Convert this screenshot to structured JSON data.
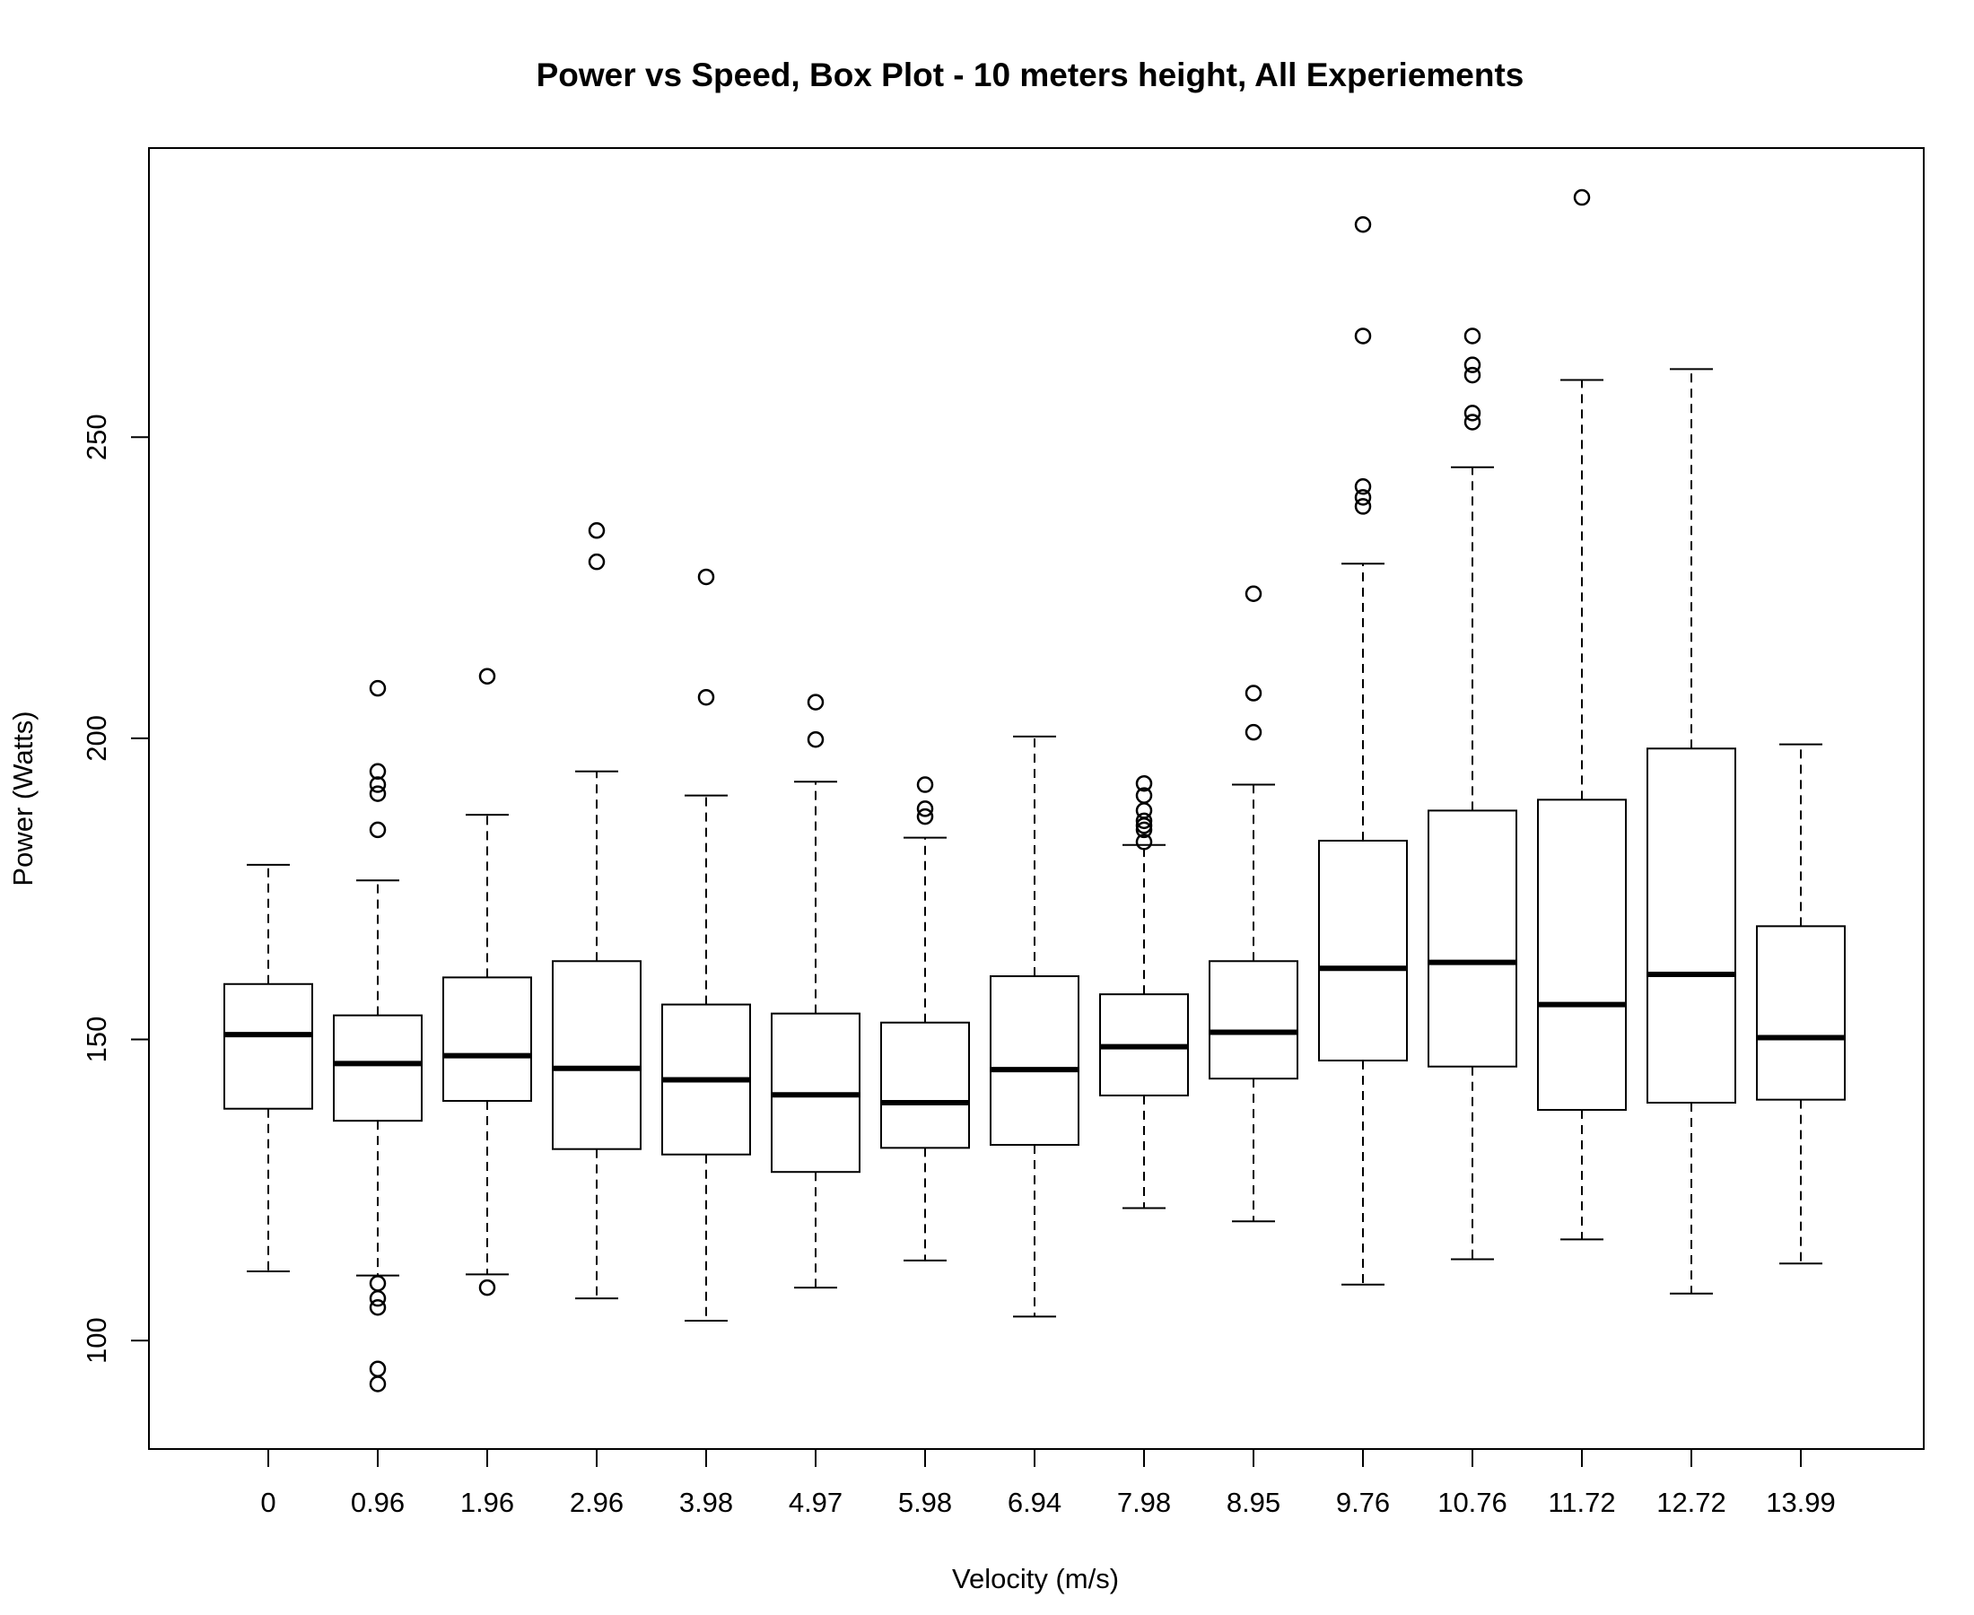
{
  "chart_data": {
    "type": "box",
    "title": "Power vs Speed, Box Plot - 10 meters height, All Experiements",
    "xlabel": "Velocity (m/s)",
    "ylabel": "Power (Watts)",
    "categories": [
      "0",
      "0.96",
      "1.96",
      "2.96",
      "3.98",
      "4.97",
      "5.98",
      "6.94",
      "7.98",
      "8.95",
      "9.76",
      "10.76",
      "11.72",
      "12.72",
      "13.99"
    ],
    "yticks": [
      100,
      150,
      200,
      250
    ],
    "ylim": [
      82,
      298
    ],
    "grid": false,
    "legend": "none",
    "boxes": [
      {
        "category": "0",
        "whisker_low": 111.5,
        "q1": 138.5,
        "median": 150.8,
        "q3": 159.2,
        "whisker_high": 179.0,
        "outliers": []
      },
      {
        "category": "0.96",
        "whisker_low": 110.8,
        "q1": 136.5,
        "median": 146.0,
        "q3": 154.0,
        "whisker_high": 176.4,
        "outliers": [
          109.5,
          107.0,
          105.5,
          95.3,
          92.8,
          184.8,
          190.8,
          192.3,
          194.5,
          208.3
        ]
      },
      {
        "category": "1.96",
        "whisker_low": 111.0,
        "q1": 139.8,
        "median": 147.3,
        "q3": 160.3,
        "whisker_high": 187.3,
        "outliers": [
          108.8,
          210.3
        ]
      },
      {
        "category": "2.96",
        "whisker_low": 107.0,
        "q1": 131.8,
        "median": 145.2,
        "q3": 163.0,
        "whisker_high": 194.5,
        "outliers": [
          229.3,
          234.5
        ]
      },
      {
        "category": "3.98",
        "whisker_low": 103.3,
        "q1": 130.9,
        "median": 143.3,
        "q3": 155.8,
        "whisker_high": 190.5,
        "outliers": [
          206.8,
          226.8
        ]
      },
      {
        "category": "4.97",
        "whisker_low": 108.8,
        "q1": 128.0,
        "median": 140.8,
        "q3": 154.3,
        "whisker_high": 192.8,
        "outliers": [
          199.8,
          206.0
        ]
      },
      {
        "category": "5.98",
        "whisker_low": 113.3,
        "q1": 132.0,
        "median": 139.5,
        "q3": 152.8,
        "whisker_high": 183.5,
        "outliers": [
          187.0,
          188.3,
          192.3
        ]
      },
      {
        "category": "6.94",
        "whisker_low": 104.0,
        "q1": 132.5,
        "median": 145.0,
        "q3": 160.5,
        "whisker_high": 200.3,
        "outliers": []
      },
      {
        "category": "7.98",
        "whisker_low": 122.0,
        "q1": 140.7,
        "median": 148.8,
        "q3": 157.5,
        "whisker_high": 182.3,
        "outliers": [
          182.8,
          184.8,
          185.5,
          186.3,
          188.0,
          190.5,
          192.5
        ]
      },
      {
        "category": "8.95",
        "whisker_low": 119.8,
        "q1": 143.5,
        "median": 151.2,
        "q3": 163.0,
        "whisker_high": 192.3,
        "outliers": [
          201.0,
          207.5,
          224.0
        ]
      },
      {
        "category": "9.76",
        "whisker_low": 109.3,
        "q1": 146.5,
        "median": 161.8,
        "q3": 183.0,
        "whisker_high": 229.0,
        "outliers": [
          238.5,
          240.0,
          241.8,
          266.8,
          285.3
        ]
      },
      {
        "category": "10.76",
        "whisker_low": 113.5,
        "q1": 145.5,
        "median": 162.8,
        "q3": 188.0,
        "whisker_high": 245.0,
        "outliers": [
          252.5,
          254.0,
          260.3,
          262.0,
          266.8
        ]
      },
      {
        "category": "11.72",
        "whisker_low": 116.8,
        "q1": 138.3,
        "median": 155.8,
        "q3": 189.8,
        "whisker_high": 259.5,
        "outliers": [
          289.8
        ]
      },
      {
        "category": "12.72",
        "whisker_low": 107.8,
        "q1": 139.5,
        "median": 160.8,
        "q3": 198.3,
        "whisker_high": 261.3,
        "outliers": []
      },
      {
        "category": "13.99",
        "whisker_low": 112.8,
        "q1": 140.0,
        "median": 150.3,
        "q3": 168.8,
        "whisker_high": 199.0,
        "outliers": []
      }
    ]
  }
}
